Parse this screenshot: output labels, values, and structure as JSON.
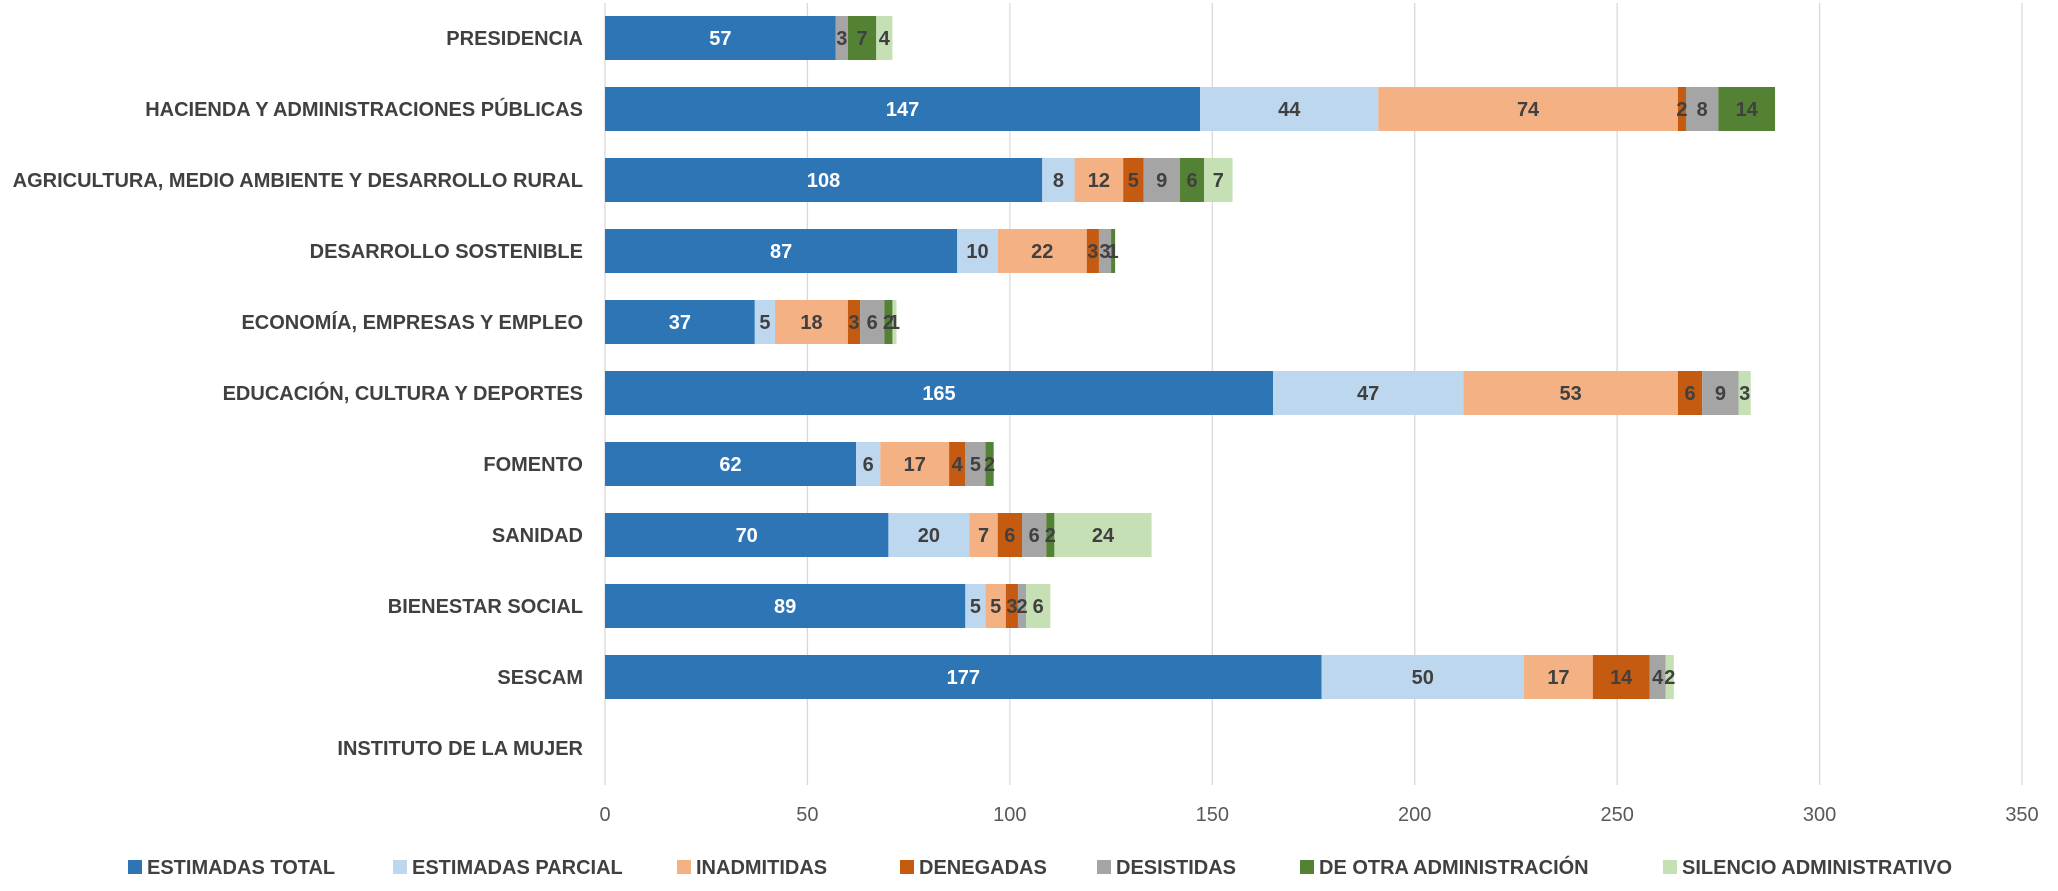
{
  "chart_data": {
    "type": "bar",
    "orientation": "horizontal",
    "stacked": true,
    "categories": [
      "PRESIDENCIA",
      "HACIENDA Y ADMINISTRACIONES PÚBLICAS",
      "AGRICULTURA, MEDIO AMBIENTE Y DESARROLLO RURAL",
      "DESARROLLO SOSTENIBLE",
      "ECONOMÍA, EMPRESAS Y EMPLEO",
      "EDUCACIÓN, CULTURA Y DEPORTES",
      "FOMENTO",
      "SANIDAD",
      "BIENESTAR SOCIAL",
      "SESCAM",
      "INSTITUTO DE LA MUJER"
    ],
    "series": [
      {
        "name": "ESTIMADAS TOTAL",
        "color": "#2e75b6",
        "label_color": "#ffffff",
        "values": [
          57,
          147,
          108,
          87,
          37,
          165,
          62,
          70,
          89,
          177,
          null
        ]
      },
      {
        "name": "ESTIMADAS PARCIAL",
        "color": "#bdd7ee",
        "label_color": "#404040",
        "values": [
          null,
          44,
          8,
          10,
          5,
          47,
          6,
          20,
          5,
          50,
          null
        ]
      },
      {
        "name": "INADMITIDAS",
        "color": "#f4b183",
        "label_color": "#404040",
        "values": [
          null,
          74,
          12,
          22,
          18,
          53,
          17,
          7,
          5,
          17,
          null
        ]
      },
      {
        "name": "DENEGADAS",
        "color": "#c55a11",
        "label_color": "#404040",
        "values": [
          null,
          2,
          5,
          3,
          3,
          6,
          4,
          6,
          3,
          14,
          null
        ]
      },
      {
        "name": "DESISTIDAS",
        "color": "#a5a5a5",
        "label_color": "#404040",
        "values": [
          3,
          8,
          9,
          3,
          6,
          9,
          5,
          6,
          2,
          4,
          null
        ]
      },
      {
        "name": "DE OTRA ADMINISTRACIÓN",
        "color": "#548235",
        "label_color": "#404040",
        "values": [
          7,
          14,
          6,
          1,
          2,
          null,
          2,
          2,
          null,
          null,
          null
        ]
      },
      {
        "name": "SILENCIO ADMINISTRATIVO",
        "color": "#c5e0b4",
        "label_color": "#404040",
        "values": [
          4,
          null,
          7,
          null,
          1,
          3,
          null,
          24,
          6,
          2,
          null
        ]
      }
    ],
    "xlim": [
      0,
      350
    ],
    "xticks": [
      0,
      50,
      100,
      150,
      200,
      250,
      300,
      350
    ],
    "grid": true,
    "legend_position": "bottom",
    "title": "",
    "xlabel": "",
    "ylabel": ""
  }
}
